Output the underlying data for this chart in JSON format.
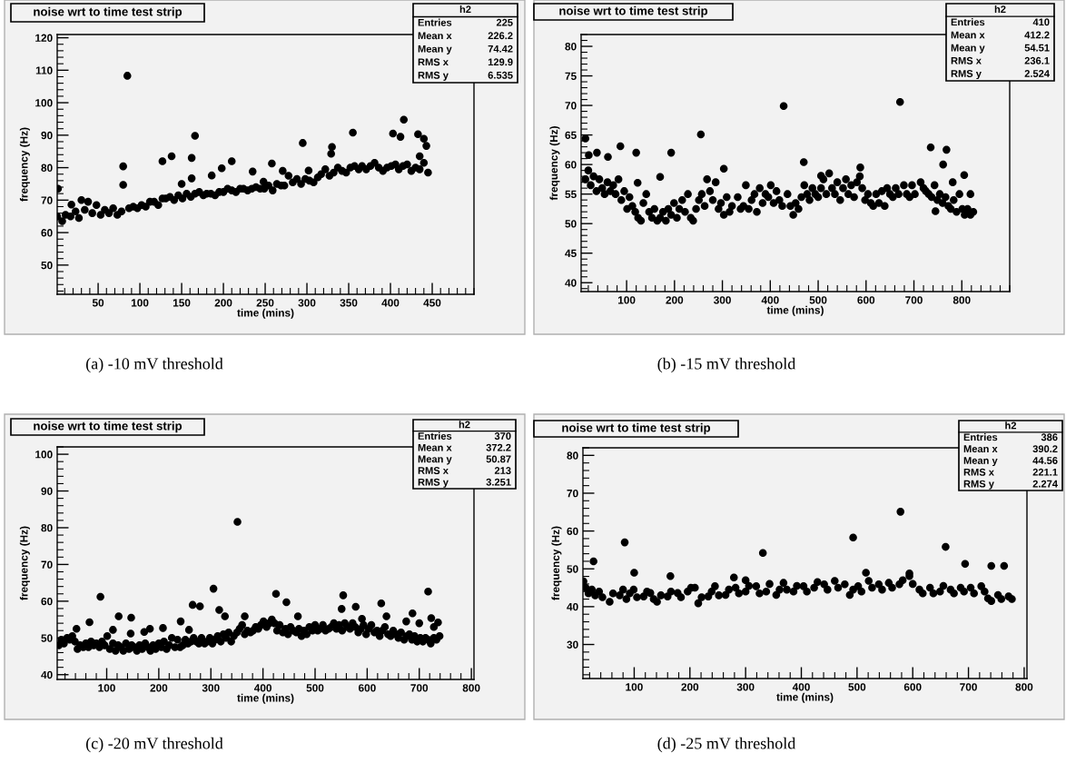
{
  "chart_data": [
    {
      "type": "scatter",
      "title": "noise wrt to time test strip",
      "xlabel": "time (mins)",
      "ylabel": "frequency (Hz)",
      "xlim": [
        1,
        500
      ],
      "ylim": [
        41,
        121
      ],
      "xticks": [
        50,
        100,
        150,
        200,
        250,
        300,
        350,
        400,
        450
      ],
      "yticks": [
        50,
        60,
        70,
        80,
        90,
        100,
        110,
        120
      ],
      "marker": "circle",
      "series": [
        {
          "color": "#000000",
          "x": [
            1,
            7,
            11,
            17,
            23,
            27,
            34,
            38,
            43,
            48,
            53,
            58,
            63,
            68,
            73,
            78,
            87,
            92,
            97,
            102,
            107,
            112,
            117,
            122,
            127,
            131,
            136,
            141,
            146,
            151,
            156,
            161,
            166,
            171,
            176,
            180,
            185,
            190,
            195,
            200,
            205,
            210,
            215,
            220,
            224,
            229,
            234,
            239,
            244,
            249,
            254,
            259,
            264,
            269,
            273,
            278,
            283,
            288,
            293,
            298,
            303,
            308,
            313,
            317,
            322,
            327,
            332,
            337,
            342,
            347,
            352,
            357,
            362,
            366,
            371,
            376,
            381,
            386,
            391,
            396,
            401,
            406,
            410,
            415,
            420,
            425,
            430,
            435,
            440,
            445
          ],
          "values": [
            65,
            63.5,
            65.5,
            65,
            66.5,
            64.5,
            67,
            69.5,
            66,
            68.5,
            65.5,
            67,
            66,
            67.5,
            65.5,
            66.5,
            67.5,
            68,
            67.5,
            68.5,
            68,
            69.5,
            69.5,
            68.5,
            70.5,
            70.5,
            71,
            70,
            71.5,
            70.5,
            72,
            71,
            72,
            72.5,
            71.5,
            72,
            72,
            71.5,
            72.5,
            72.5,
            73.5,
            73,
            72.5,
            73.5,
            73.5,
            73,
            73.5,
            74,
            73.5,
            73.5,
            74.5,
            73,
            75,
            74.5,
            74.5,
            77.5,
            75.5,
            76.5,
            75,
            76.5,
            76,
            75.5,
            77,
            78,
            79.5,
            77.5,
            78.5,
            80,
            79,
            78.5,
            80,
            80.5,
            79.5,
            80.5,
            79.5,
            80.5,
            81.5,
            80,
            79,
            80,
            80.5,
            81,
            79.5,
            80.5,
            81,
            79,
            80,
            79.5,
            81.5,
            78.5
          ]
        },
        {
          "color": "#000000",
          "x": [
            2,
            80,
            80,
            85,
            18,
            30,
            127,
            138,
            162,
            162,
            166,
            150,
            186,
            198,
            210,
            235,
            258,
            271,
            248,
            295,
            302,
            330,
            329,
            355,
            403,
            412,
            416,
            433,
            440,
            443,
            435
          ],
          "values": [
            73.5,
            80.4,
            74.7,
            108.3,
            68.6,
            70,
            82,
            83.5,
            83,
            76.7,
            89.8,
            75,
            77.6,
            79.8,
            82,
            78.8,
            81.3,
            79,
            75.7,
            87.6,
            79.1,
            86.4,
            84.3,
            90.8,
            90.5,
            89.5,
            94.8,
            90.3,
            88.9,
            86.7,
            83.5
          ]
        }
      ],
      "annotations": [
        "h2",
        "Entries",
        "225",
        "Mean x",
        "226.2",
        "Mean y",
        "74.42",
        "RMS x",
        "129.9",
        "RMS y",
        "6.535",
        "(a) -10 mV threshold"
      ]
    },
    {
      "type": "scatter",
      "title": "noise wrt to time test strip",
      "xlabel": "time (mins)",
      "ylabel": "frequency (Hz)",
      "xlim": [
        5,
        900
      ],
      "ylim": [
        38.5,
        82
      ],
      "xticks": [
        100,
        200,
        300,
        400,
        500,
        600,
        700,
        800
      ],
      "yticks": [
        40,
        45,
        50,
        55,
        60,
        65,
        70,
        75,
        80
      ],
      "marker": "circle",
      "series": [
        {
          "color": "#000000",
          "x": [
            14,
            20,
            25,
            31,
            37,
            43,
            49,
            54,
            60,
            66,
            72,
            77,
            83,
            89,
            95,
            101,
            106,
            112,
            118,
            124,
            130,
            135,
            141,
            147,
            153,
            158,
            164,
            170,
            176,
            182,
            187,
            193,
            199,
            205,
            210,
            216,
            222,
            228,
            234,
            239,
            245,
            251,
            257,
            263,
            268,
            274,
            280,
            286,
            292,
            297,
            303,
            309,
            315,
            320,
            332,
            338,
            344,
            349,
            355,
            361,
            367,
            372,
            378,
            384,
            390,
            396,
            401,
            407,
            413,
            419,
            425,
            436,
            442,
            448,
            453,
            459,
            465,
            471,
            477,
            482,
            488,
            494,
            500,
            506,
            511,
            517,
            523,
            529,
            535,
            540,
            546,
            552,
            558,
            563,
            569,
            575,
            581,
            587,
            592,
            598,
            604,
            610,
            615,
            621,
            627,
            633,
            639,
            644,
            650,
            656,
            662,
            668,
            679,
            685,
            691,
            696,
            702,
            714,
            720,
            725,
            731,
            737,
            743,
            749,
            754,
            760,
            766,
            772,
            777,
            783,
            789,
            795,
            801,
            806,
            812,
            818,
            824
          ],
          "values": [
            57.5,
            59,
            56.5,
            58,
            55.5,
            57.5,
            56,
            55,
            57,
            55.5,
            56.5,
            55,
            57.5,
            54,
            55.5,
            52.5,
            54.5,
            53,
            52,
            51,
            50.5,
            53.5,
            55,
            52,
            51,
            52.5,
            50.5,
            51,
            52,
            50.5,
            52.5,
            51.5,
            53.5,
            51,
            52.5,
            54,
            52,
            55,
            51,
            50.5,
            52.5,
            54,
            55,
            53,
            57.5,
            55.5,
            54,
            57,
            52.5,
            53.5,
            51.5,
            54.5,
            52,
            53,
            54.5,
            52.5,
            53,
            56.5,
            52.5,
            54,
            55,
            52,
            56,
            53.5,
            55,
            54.5,
            56.5,
            53.5,
            55.5,
            54,
            53,
            55,
            53,
            51.5,
            53.5,
            52.5,
            54.5,
            56.5,
            55,
            54,
            56,
            55,
            54.5,
            56,
            57.5,
            55,
            58.5,
            56,
            55,
            57,
            54,
            56,
            57.5,
            55,
            56.5,
            54.5,
            57,
            58,
            56,
            54,
            55,
            53.5,
            53,
            55,
            53.5,
            55.5,
            53,
            56,
            55,
            54.5,
            56,
            55,
            56.5,
            55,
            54.5,
            56.5,
            55,
            57,
            56,
            55.5,
            55,
            54.5,
            56.5,
            54,
            55,
            53.5,
            54.5,
            53,
            52.5,
            54,
            52,
            55,
            52.5,
            51.5,
            52.5,
            51.5,
            52
          ]
        },
        {
          "color": "#000000",
          "x": [
            14,
            21,
            38,
            61,
            87,
            120,
            123,
            170,
            193,
            255,
            303,
            428,
            470,
            671,
            735,
            761,
            768,
            781,
            805,
            818,
            745,
            506,
            588
          ],
          "values": [
            64.4,
            61.6,
            62,
            61.3,
            63.1,
            62,
            56.9,
            57.9,
            62,
            65.1,
            59.3,
            69.9,
            60.4,
            70.6,
            62.9,
            60,
            62.5,
            57,
            58.2,
            55,
            52.1,
            58.1,
            59.5
          ]
        }
      ],
      "annotations": [
        "h2",
        "Entries",
        "410",
        "Mean x",
        "412.2",
        "Mean y",
        "54.51",
        "RMS x",
        "236.1",
        "RMS y",
        "2.524",
        "(b) -15 mV threshold"
      ]
    },
    {
      "type": "scatter",
      "title": "noise wrt to time test strip",
      "xlabel": "time (mins)",
      "ylabel": "frequency (Hz)",
      "xlim": [
        5,
        805
      ],
      "ylim": [
        38.7,
        102
      ],
      "xticks": [
        100,
        200,
        300,
        400,
        500,
        600,
        700,
        800
      ],
      "yticks": [
        40,
        50,
        60,
        70,
        80,
        90,
        100
      ],
      "marker": "circle",
      "series": [
        {
          "color": "#000000",
          "x": [
            8,
            13,
            18,
            24,
            29,
            34,
            39,
            44,
            49,
            55,
            60,
            65,
            70,
            75,
            80,
            86,
            91,
            96,
            101,
            106,
            112,
            117,
            122,
            127,
            132,
            137,
            143,
            148,
            153,
            158,
            163,
            168,
            174,
            179,
            184,
            189,
            194,
            200,
            205,
            210,
            215,
            220,
            225,
            231,
            236,
            241,
            246,
            251,
            256,
            262,
            267,
            272,
            277,
            282,
            288,
            293,
            298,
            303,
            308,
            313,
            319,
            324,
            329,
            334,
            339,
            344,
            350,
            355,
            360,
            365,
            370,
            376,
            381,
            386,
            391,
            396,
            401,
            407,
            412,
            417,
            422,
            427,
            432,
            438,
            443,
            448,
            453,
            458,
            464,
            469,
            474,
            479,
            484,
            489,
            495,
            500,
            505,
            510,
            515,
            520,
            526,
            531,
            536,
            541,
            546,
            552,
            557,
            562,
            567,
            572,
            577,
            583,
            588,
            593,
            598,
            603,
            608,
            614,
            619,
            624,
            629,
            634,
            640,
            645,
            650,
            655,
            660,
            665,
            671,
            676,
            681,
            686,
            691,
            696,
            702,
            707,
            712,
            717,
            722,
            728,
            733,
            739
          ],
          "values": [
            48,
            49.5,
            48.5,
            50,
            49.5,
            50.5,
            49,
            47,
            48,
            47.5,
            48.5,
            47.5,
            49,
            48,
            48.5,
            47.5,
            49,
            48,
            50.5,
            47,
            48.5,
            46.5,
            48,
            47.5,
            46.5,
            48.5,
            47,
            48,
            47.5,
            46.5,
            48,
            47,
            48.5,
            47.5,
            46.5,
            48,
            47,
            48.5,
            47.5,
            49,
            47,
            48,
            50,
            47.5,
            49.5,
            47.5,
            48,
            49.5,
            48.5,
            49,
            50,
            49,
            48.5,
            50,
            48.5,
            49,
            50,
            48.5,
            49.5,
            50.5,
            49,
            51,
            50,
            51.5,
            49,
            50.5,
            51.5,
            52.5,
            53.5,
            51,
            52,
            51.5,
            52,
            53,
            52.5,
            53.5,
            54.5,
            53,
            54,
            55,
            54,
            52,
            53.5,
            51.5,
            52.5,
            51,
            53,
            52,
            51.5,
            52.5,
            50.5,
            52,
            51,
            53,
            52,
            53.5,
            52,
            52.5,
            53.5,
            52,
            52.5,
            53,
            54,
            52.5,
            53.5,
            52,
            54,
            53,
            52.5,
            54,
            53,
            51.5,
            52.5,
            53.5,
            51,
            52.5,
            53.5,
            51.5,
            52,
            50.5,
            52,
            53,
            51,
            50.5,
            52,
            51,
            50,
            51.5,
            49.5,
            50.5,
            51,
            49.5,
            50.5,
            49,
            50,
            49,
            50,
            49.5,
            48.5,
            50,
            49.5,
            50.5
          ]
        },
        {
          "color": "#000000",
          "x": [
            42,
            67,
            88,
            112,
            123,
            147,
            146,
            172,
            183,
            208,
            242,
            258,
            265,
            279,
            305,
            316,
            327,
            351,
            365,
            425,
            445,
            467,
            551,
            554,
            578,
            590,
            627,
            637,
            675,
            687,
            700,
            717,
            723,
            728,
            736
          ],
          "values": [
            52.5,
            54.3,
            61.2,
            52.2,
            55.9,
            55.5,
            51.2,
            51.6,
            52.5,
            52.7,
            54.5,
            52.2,
            59,
            58.6,
            63.4,
            57.6,
            55.9,
            81.6,
            55.9,
            62,
            59.7,
            55.9,
            57.9,
            61.6,
            58.5,
            55.2,
            59.4,
            55.9,
            54.5,
            56.7,
            54,
            62.6,
            55.4,
            53,
            54.2
          ]
        }
      ],
      "annotations": [
        "h2",
        "Entries",
        "370",
        "Mean x",
        "372.2",
        "Mean y",
        "50.87",
        "RMS x",
        "213",
        "RMS y",
        "3.251",
        "(c) -20 mV threshold"
      ]
    },
    {
      "type": "scatter",
      "title": "noise wrt to time test strip",
      "xlabel": "time (mins)",
      "ylabel": "frequency (Hz)",
      "xlim": [
        8,
        805
      ],
      "ylim": [
        21,
        82
      ],
      "xticks": [
        100,
        200,
        300,
        400,
        500,
        600,
        700,
        800
      ],
      "yticks": [
        30,
        40,
        50,
        60,
        70,
        80
      ],
      "marker": "circle",
      "series": [
        {
          "color": "#000000",
          "x": [
            13,
            18,
            24,
            30,
            37,
            43,
            56,
            62,
            74,
            80,
            86,
            92,
            99,
            105,
            117,
            123,
            129,
            135,
            141,
            148,
            160,
            166,
            178,
            184,
            196,
            202,
            209,
            215,
            221,
            233,
            239,
            245,
            252,
            264,
            270,
            282,
            288,
            300,
            306,
            319,
            325,
            337,
            343,
            355,
            361,
            368,
            374,
            386,
            392,
            404,
            410,
            423,
            429,
            441,
            447,
            460,
            466,
            478,
            487,
            493,
            502,
            508,
            521,
            527,
            539,
            545,
            557,
            563,
            576,
            582,
            594,
            600,
            612,
            618,
            631,
            637,
            649,
            655,
            668,
            674,
            686,
            692,
            704,
            710,
            723,
            729,
            735,
            741,
            753,
            759,
            772,
            778
          ],
          "values": [
            45,
            43.5,
            44.5,
            43,
            44,
            42.5,
            41.3,
            43.5,
            43,
            44.5,
            42,
            43.5,
            44.5,
            42.5,
            42.7,
            44,
            43.6,
            42,
            41.3,
            43,
            42.7,
            44,
            43.6,
            42.5,
            44,
            45,
            45,
            40.9,
            42.5,
            42.7,
            44,
            45.4,
            43,
            43.1,
            44.5,
            45,
            43.5,
            44,
            45.5,
            45.4,
            43.5,
            44,
            46,
            43.1,
            44.5,
            46.3,
            44.5,
            44,
            45.5,
            45.4,
            44,
            45,
            46.5,
            45.9,
            44.5,
            46.8,
            45,
            45.9,
            43.1,
            44.5,
            45.4,
            44,
            46.8,
            45,
            45.9,
            44.5,
            46.3,
            45,
            45.9,
            47,
            48.1,
            46,
            44.5,
            43.5,
            45,
            43.5,
            44,
            45.5,
            44.5,
            43.5,
            45,
            44,
            45,
            43.5,
            45.4,
            44,
            42.2,
            41.5,
            43.1,
            42,
            42.7,
            42
          ]
        },
        {
          "color": "#000000",
          "x": [
            9,
            27,
            83,
            100,
            165,
            279,
            331,
            493,
            516,
            578,
            659,
            694,
            741,
            764,
            594,
            300
          ],
          "values": [
            46.7,
            52,
            57,
            49,
            48.1,
            47.7,
            54.2,
            58.3,
            49,
            65.1,
            55.8,
            51.3,
            50.8,
            50.8,
            48.8,
            47
          ]
        }
      ],
      "annotations": [
        "h2",
        "Entries",
        "386",
        "Mean x",
        "390.2",
        "Mean y",
        "44.56",
        "RMS x",
        "221.1",
        "RMS y",
        "2.274",
        "(d) -25 mV threshold"
      ]
    }
  ]
}
